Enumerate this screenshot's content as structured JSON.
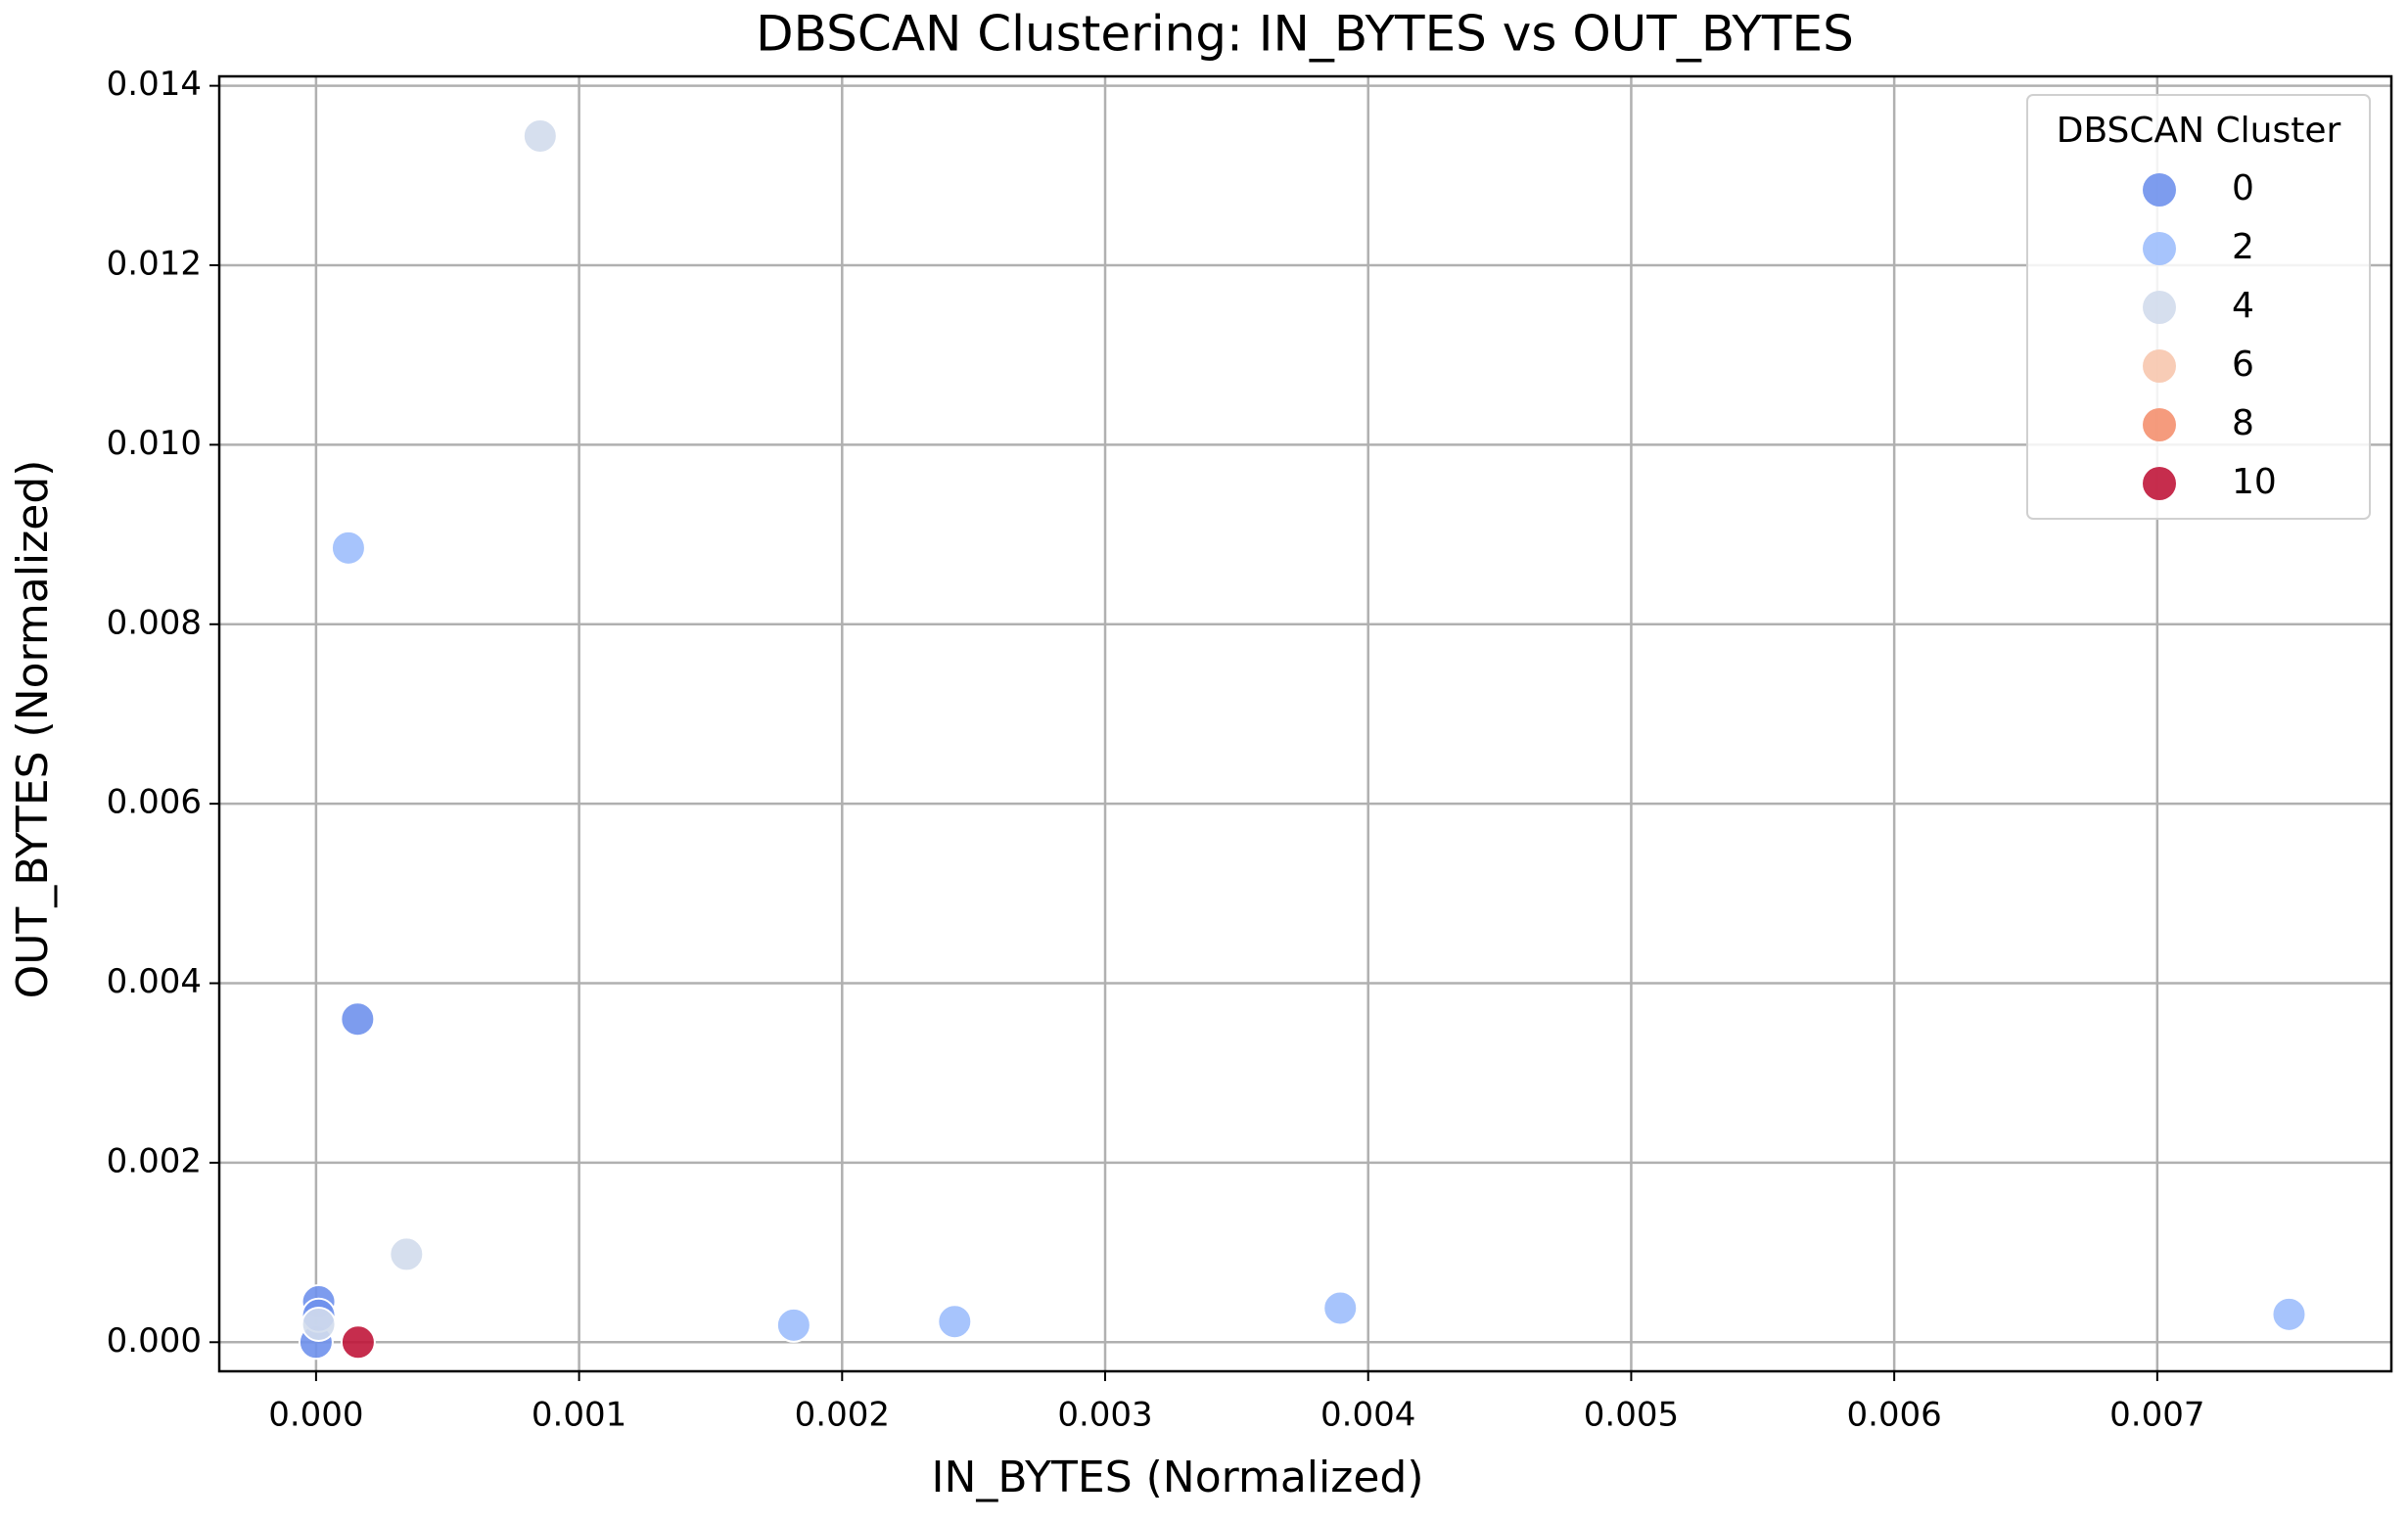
{
  "chart_data": {
    "type": "scatter",
    "title": "DBSCAN Clustering: IN_BYTES vs OUT_BYTES",
    "x_label": "IN_BYTES (Normalized)",
    "y_label": "OUT_BYTES (Normalized)",
    "xlim": [
      -0.000368,
      0.00789
    ],
    "ylim": [
      -0.000324,
      0.014105
    ],
    "xticks": [
      {
        "value": 0,
        "label": "0.000"
      },
      {
        "value": 0.001,
        "label": "0.001"
      },
      {
        "value": 0.002,
        "label": "0.002"
      },
      {
        "value": 0.003,
        "label": "0.003"
      },
      {
        "value": 0.004,
        "label": "0.004"
      },
      {
        "value": 0.005,
        "label": "0.005"
      },
      {
        "value": 0.006,
        "label": "0.006"
      },
      {
        "value": 0.007,
        "label": "0.007"
      }
    ],
    "yticks": [
      {
        "value": 0,
        "label": "0.000"
      },
      {
        "value": 0.002,
        "label": "0.002"
      },
      {
        "value": 0.004,
        "label": "0.004"
      },
      {
        "value": 0.006,
        "label": "0.006"
      },
      {
        "value": 0.008,
        "label": "0.008"
      },
      {
        "value": 0.01,
        "label": "0.010"
      },
      {
        "value": 0.012,
        "label": "0.012"
      },
      {
        "value": 0.014,
        "label": "0.014"
      }
    ],
    "grid": true,
    "legend_title": "DBSCAN Cluster",
    "legend_position": "upper-right",
    "series": [
      {
        "name": "0",
        "color": "#6f91ec",
        "x": [
          0,
          1e-05,
          1e-05,
          0.000158
        ],
        "values": [
          0,
          0.00045,
          0.0003,
          0.0036
        ]
      },
      {
        "name": "2",
        "color": "#9dbefc",
        "x": [
          0.001816,
          0.002428,
          0.003894,
          0.007501,
          0.000123
        ],
        "values": [
          0.00019,
          0.00023,
          0.00038,
          0.00031,
          0.00885
        ]
      },
      {
        "name": "4",
        "color": "#d2dcec",
        "x": [
          0.000852,
          0.000344,
          1e-05
        ],
        "values": [
          0.01344,
          0.00098,
          0.0002
        ]
      },
      {
        "name": "6",
        "color": "#f7c6ae",
        "x": [],
        "values": []
      },
      {
        "name": "8",
        "color": "#f4906f",
        "x": [],
        "values": []
      },
      {
        "name": "10",
        "color": "#c0163a",
        "x": [
          0.00016
        ],
        "values": [
          0
        ]
      }
    ]
  }
}
